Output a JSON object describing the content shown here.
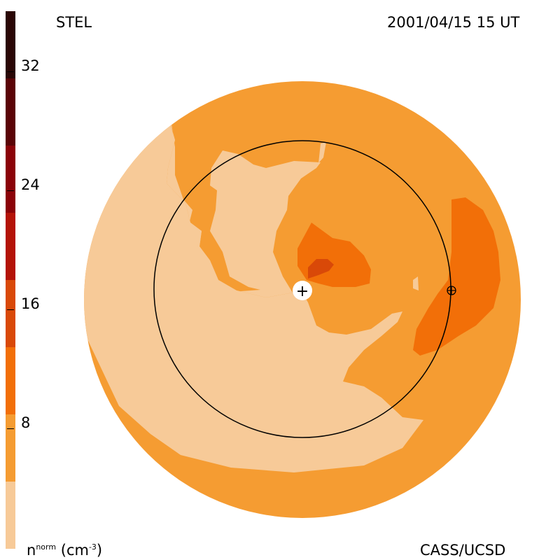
{
  "title_left": "STEL",
  "title_right": "2001/04/15 15 UT",
  "footer_right": "CASS/UCSD",
  "colorbar": {
    "label_base": "n",
    "label_sup": "norm",
    "label_unit": "(cm",
    "label_unit_sup": "-3",
    "label_close": ")",
    "levels": [
      {
        "color": "#f7ca98"
      },
      {
        "color": "#f59c32"
      },
      {
        "color": "#f26f08"
      },
      {
        "color": "#d94908"
      },
      {
        "color": "#b41307"
      },
      {
        "color": "#8b0208"
      },
      {
        "color": "#5a0306"
      },
      {
        "color": "#2a0605"
      }
    ],
    "ticks": [
      "8",
      "16",
      "24",
      "32"
    ]
  },
  "map": {
    "outer_color": "#f59c32",
    "low_color": "#f7ca98",
    "mid_color": "#f26f08",
    "high_color": "#d94908",
    "observer_symbol": "+",
    "earth_symbol": "⊕"
  }
}
